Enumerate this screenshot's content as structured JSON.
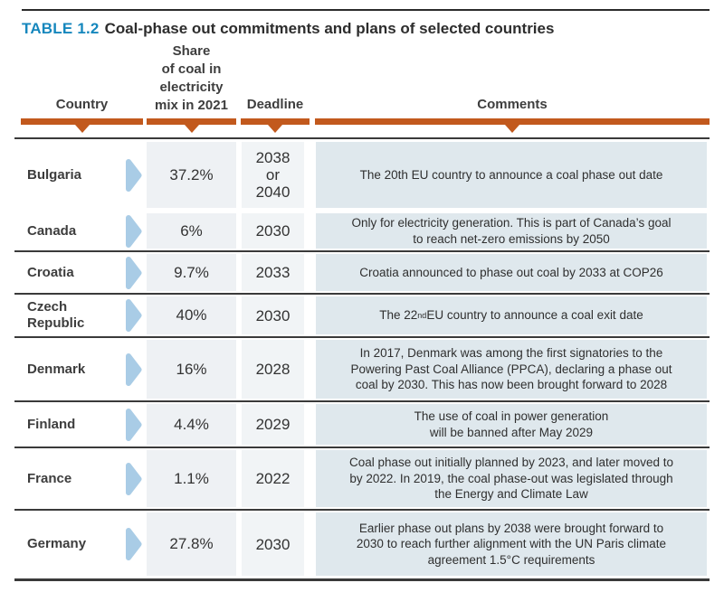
{
  "page": {
    "tag": "TABLE 1.2",
    "title": "Coal-phase out commitments and plans of selected countries"
  },
  "columns": {
    "country": "Country",
    "share": "Share\nof coal in\nelectricity\nmix in 2021",
    "deadline": "Deadline",
    "comments": "Comments"
  },
  "rows": [
    {
      "country": "Bulgaria",
      "share": "37.2%",
      "deadline": "2038\nor\n2040",
      "comment": "The 20th EU country to announce a coal phase out date"
    },
    {
      "country": "Canada",
      "share": "6%",
      "deadline": "2030",
      "comment": "Only for electricity generation. This is part of Canada’s goal\nto reach net-zero emissions by 2050"
    },
    {
      "country": "Croatia",
      "share": "9.7%",
      "deadline": "2033",
      "comment": "Croatia announced to phase out coal by 2033 at COP26"
    },
    {
      "country": "Czech\nRepublic",
      "share": "40%",
      "deadline": "2030",
      "comment": "The 22^(nd) EU country to announce a coal exit date"
    },
    {
      "country": "Denmark",
      "share": "16%",
      "deadline": "2028",
      "comment": "In 2017, Denmark was among the first signatories to the\nPowering Past Coal Alliance (PPCA), declaring a phase out\ncoal by 2030. This has now been brought forward to 2028"
    },
    {
      "country": "Finland",
      "share": "4.4%",
      "deadline": "2029",
      "comment": "The use of coal in power generation\nwill be banned after May 2029"
    },
    {
      "country": "France",
      "share": "1.1%",
      "deadline": "2022",
      "comment": "Coal phase out initially planned by 2023, and later moved to\nby 2022. In 2019, the coal phase-out was legislated through\nthe Energy and Climate Law"
    },
    {
      "country": "Germany",
      "share": "27.8%",
      "deadline": "2030",
      "comment": "Earlier phase out plans by 2038 were brought forward to\n2030 to reach further alignment with the UN Paris climate\nagreement 1.5°C requirements"
    }
  ],
  "colors": {
    "accent_orange": "#c2591d",
    "tag_blue": "#1687bd",
    "arrow_blue": "#a9cce6",
    "share_cell_bg": "#eef1f4",
    "deadline_cell_bg": "#f1f4f6",
    "comments_cell_bg": "#dfe8ed",
    "rule_dark": "#3a3a3a"
  }
}
